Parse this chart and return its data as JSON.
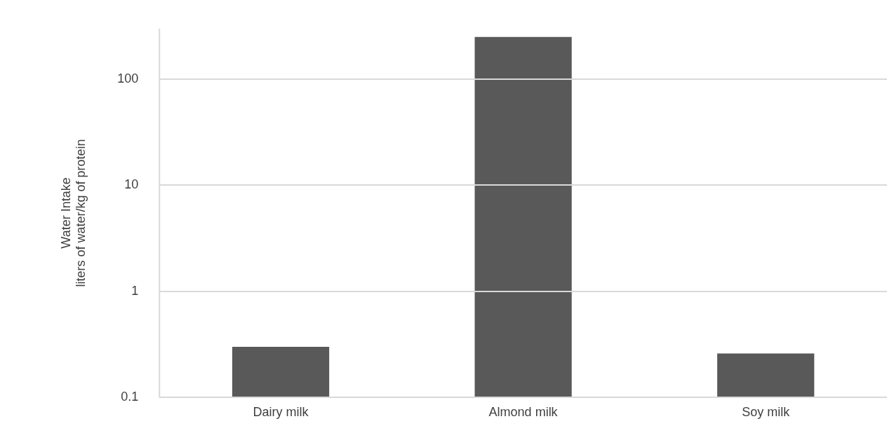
{
  "chart_data": {
    "type": "bar",
    "categories": [
      "Dairy milk",
      "Almond milk",
      "Soy milk"
    ],
    "values": [
      0.3,
      250,
      0.26
    ],
    "color": "#595959",
    "ylabel": "Water Intake\nliters of water/kg of protein",
    "log": "y",
    "ylim": [
      0.1,
      300
    ],
    "yticks": [
      0.1,
      1,
      10,
      100
    ],
    "grid": "y",
    "legend": false
  }
}
